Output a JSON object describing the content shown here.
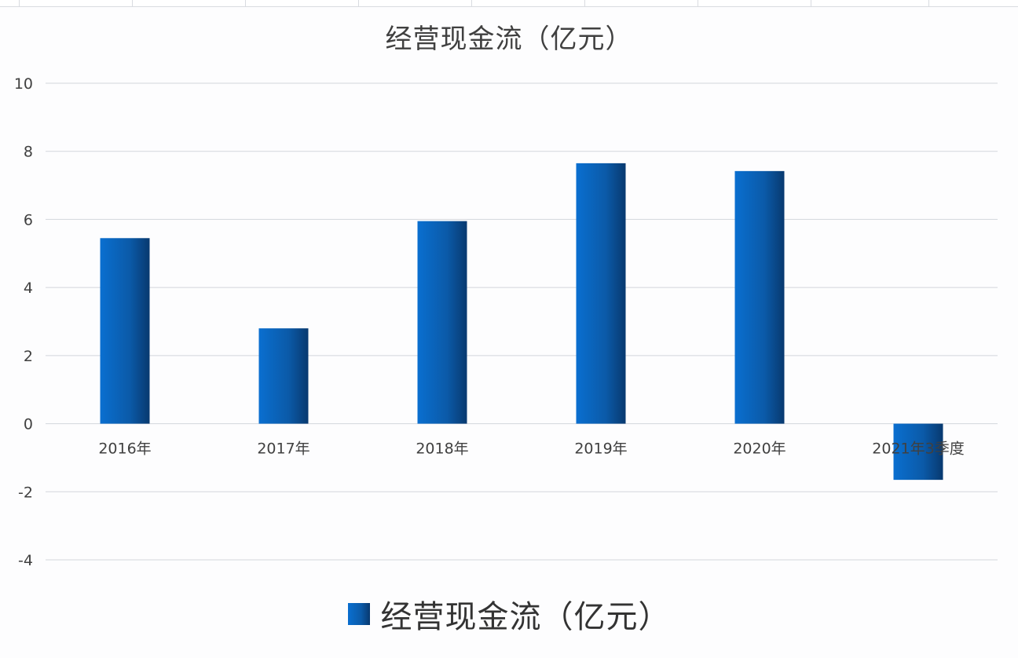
{
  "chart_data": {
    "type": "bar",
    "title": "经营现金流（亿元）",
    "categories": [
      "2016年",
      "2017年",
      "2018年",
      "2019年",
      "2020年",
      "2021年3季度"
    ],
    "series": [
      {
        "name": "经营现金流（亿元）",
        "values": [
          5.45,
          2.8,
          5.95,
          7.65,
          7.42,
          -1.65
        ]
      }
    ],
    "ylim": [
      -4,
      10
    ],
    "yticks": [
      10,
      8,
      6,
      4,
      2,
      0,
      -2,
      -4
    ],
    "xlabel": "",
    "ylabel": "",
    "grid": true,
    "legend_position": "bottom",
    "colors": {
      "bar_light": "#0a6fd0",
      "bar_mid": "#0b5aa8",
      "bar_dark": "#08396f",
      "grid": "#d3d6dc",
      "text": "#404040"
    }
  }
}
